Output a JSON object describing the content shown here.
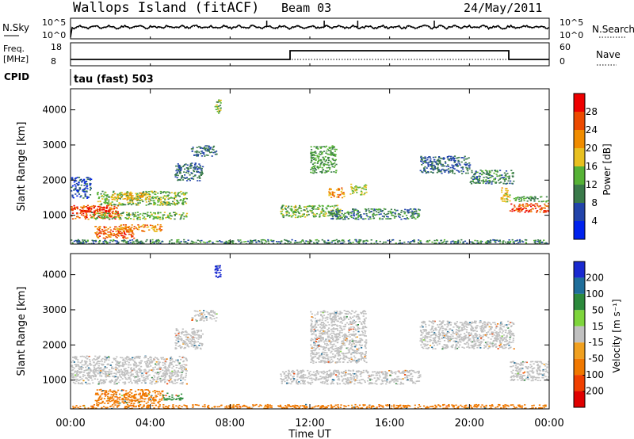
{
  "header": {
    "site": "Wallops Island (fitACF)",
    "beam": "Beam 03",
    "date": "24/May/2011"
  },
  "noise_panel": {
    "left_label": "N.Sky",
    "right_label": "N.Search",
    "ticks_left": [
      "10^5",
      "10^0"
    ],
    "ticks_right": [
      "10^5",
      "10^0"
    ]
  },
  "freq_panel": {
    "left_label_1": "Freq.",
    "left_label_2": "[MHz]",
    "right_label": "Nave",
    "ticks_left": [
      "18",
      "8"
    ],
    "ticks_right": [
      "60",
      "0"
    ]
  },
  "cpid": {
    "label": "CPID",
    "text": "tau (fast) 503"
  },
  "power_panel": {
    "ylabel": "Slant Range [km]",
    "yticks": [
      "1000",
      "2000",
      "3000",
      "4000"
    ]
  },
  "velocity_panel": {
    "ylabel": "Slant Range [km]",
    "yticks": [
      "1000",
      "2000",
      "3000",
      "4000"
    ]
  },
  "xaxis": {
    "label": "Time UT",
    "ticks": [
      "00:00",
      "04:00",
      "08:00",
      "12:00",
      "16:00",
      "20:00",
      "00:00"
    ]
  },
  "power_scale": {
    "label": "Power [dB]",
    "ticks": [
      "4",
      "8",
      "12",
      "16",
      "20",
      "24",
      "28"
    ],
    "colors": [
      "#0022ee",
      "#2244aa",
      "#3a7a4a",
      "#56b236",
      "#e8c020",
      "#f08c00",
      "#ec4a00",
      "#ee0000"
    ]
  },
  "velocity_scale": {
    "label": "Velocity [m s⁻¹]",
    "ticks": [
      "200",
      "100",
      "50",
      "15",
      "-15",
      "-50",
      "-100",
      "-200"
    ],
    "colors": [
      "#1a2ad0",
      "#1f6e9a",
      "#2c8a3c",
      "#7ed53c",
      "#c0c0c0",
      "#f0a020",
      "#f07800",
      "#f04000",
      "#e00000"
    ]
  },
  "chart_data": {
    "type": "heatmap",
    "x_range_hours": [
      0,
      24
    ],
    "y_range_km": [
      180,
      4600
    ],
    "panels": [
      {
        "name": "Power [dB]",
        "blobs": [
          {
            "t0": 0.0,
            "t1": 2.4,
            "r0": 900,
            "r1": 1300,
            "level": 26
          },
          {
            "t0": 0.3,
            "t1": 1.9,
            "r0": 1100,
            "r1": 1250,
            "level": 28
          },
          {
            "t0": 1.2,
            "t1": 3.2,
            "r0": 350,
            "r1": 700,
            "level": 25
          },
          {
            "t0": 2.3,
            "t1": 4.6,
            "r0": 550,
            "r1": 750,
            "level": 22
          },
          {
            "t0": 1.0,
            "t1": 5.8,
            "r0": 900,
            "r1": 1100,
            "level": 14
          },
          {
            "t0": 1.3,
            "t1": 5.8,
            "r0": 1300,
            "r1": 1700,
            "level": 14
          },
          {
            "t0": 2.0,
            "t1": 4.0,
            "r0": 1450,
            "r1": 1650,
            "level": 20
          },
          {
            "t0": 5.2,
            "t1": 6.6,
            "r0": 2000,
            "r1": 2500,
            "level": 8
          },
          {
            "t0": 6.0,
            "t1": 7.3,
            "r0": 2700,
            "r1": 3000,
            "level": 8
          },
          {
            "t0": 0.0,
            "t1": 1.0,
            "r0": 1500,
            "r1": 2100,
            "level": 6
          },
          {
            "t0": 10.5,
            "t1": 13.5,
            "r0": 950,
            "r1": 1300,
            "level": 14
          },
          {
            "t0": 12.0,
            "t1": 13.3,
            "r0": 2200,
            "r1": 3000,
            "level": 12
          },
          {
            "t0": 12.9,
            "t1": 13.7,
            "r0": 1500,
            "r1": 1800,
            "level": 22
          },
          {
            "t0": 14.0,
            "t1": 14.8,
            "r0": 1600,
            "r1": 1900,
            "level": 16
          },
          {
            "t0": 13.0,
            "t1": 17.5,
            "r0": 900,
            "r1": 1200,
            "level": 10
          },
          {
            "t0": 17.5,
            "t1": 20.0,
            "r0": 2200,
            "r1": 2700,
            "level": 8
          },
          {
            "t0": 20.0,
            "t1": 22.2,
            "r0": 1900,
            "r1": 2300,
            "level": 10
          },
          {
            "t0": 21.5,
            "t1": 22.0,
            "r0": 1400,
            "r1": 1800,
            "level": 18
          },
          {
            "t0": 22.0,
            "t1": 24.0,
            "r0": 1100,
            "r1": 1350,
            "level": 26
          },
          {
            "t0": 22.2,
            "t1": 24.0,
            "r0": 1400,
            "r1": 1550,
            "level": 12
          },
          {
            "t0": 7.2,
            "t1": 7.5,
            "r0": 3900,
            "r1": 4300,
            "level": 14
          },
          {
            "t0": 0.0,
            "t1": 24.0,
            "r0": 200,
            "r1": 320,
            "level": 10
          }
        ]
      },
      {
        "name": "Velocity [m s-1]",
        "blobs": [
          {
            "t0": 0.0,
            "t1": 5.8,
            "r0": 900,
            "r1": 1700,
            "level": 0
          },
          {
            "t0": 1.2,
            "t1": 4.6,
            "r0": 350,
            "r1": 750,
            "level": -60
          },
          {
            "t0": 2.5,
            "t1": 3.8,
            "r0": 450,
            "r1": 650,
            "level": -80
          },
          {
            "t0": 5.2,
            "t1": 6.6,
            "r0": 1900,
            "r1": 2500,
            "level": 0
          },
          {
            "t0": 6.0,
            "t1": 7.3,
            "r0": 2700,
            "r1": 3000,
            "level": 0
          },
          {
            "t0": 10.5,
            "t1": 17.5,
            "r0": 900,
            "r1": 1300,
            "level": 0
          },
          {
            "t0": 12.0,
            "t1": 14.8,
            "r0": 1500,
            "r1": 3000,
            "level": 0
          },
          {
            "t0": 17.5,
            "t1": 22.2,
            "r0": 1900,
            "r1": 2700,
            "level": 0
          },
          {
            "t0": 22.0,
            "t1": 24.0,
            "r0": 1000,
            "r1": 1550,
            "level": 0
          },
          {
            "t0": 7.2,
            "t1": 7.5,
            "r0": 3900,
            "r1": 4300,
            "level": 200
          },
          {
            "t0": 4.6,
            "t1": 5.6,
            "r0": 450,
            "r1": 650,
            "level": 60
          },
          {
            "t0": 0.0,
            "t1": 24.0,
            "r0": 200,
            "r1": 320,
            "level": -60
          }
        ]
      }
    ]
  }
}
